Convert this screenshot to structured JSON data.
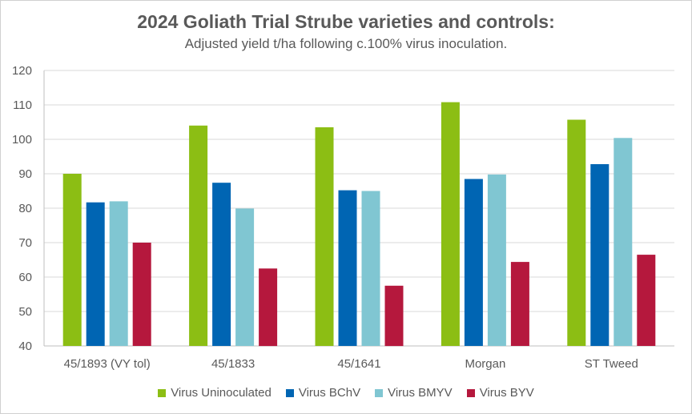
{
  "chart_data": {
    "type": "bar",
    "title": "2024 Goliath Trial Strube varieties and controls:",
    "subtitle": "Adjusted yield t/ha following c.100% virus inoculation.",
    "categories": [
      "45/1893 (VY tol)",
      "45/1833",
      "45/1641",
      "Morgan",
      "ST Tweed"
    ],
    "series": [
      {
        "name": "Virus Uninoculated",
        "color": "#8cbe14",
        "values": [
          90,
          104,
          103.5,
          110.8,
          105.7
        ]
      },
      {
        "name": "Virus BChV",
        "color": "#0065b3",
        "values": [
          81.7,
          87.4,
          85.2,
          88.5,
          92.8
        ]
      },
      {
        "name": "Virus BMYV",
        "color": "#80c6d2",
        "values": [
          82,
          79.9,
          85,
          89.8,
          100.4
        ]
      },
      {
        "name": "Virus BYV",
        "color": "#b5183d",
        "values": [
          70,
          62.5,
          57.5,
          64.4,
          66.5
        ]
      }
    ],
    "ylim": [
      40,
      120
    ],
    "yticks": [
      40,
      50,
      60,
      70,
      80,
      90,
      100,
      110,
      120
    ],
    "grid": true,
    "legend_position": "bottom"
  }
}
